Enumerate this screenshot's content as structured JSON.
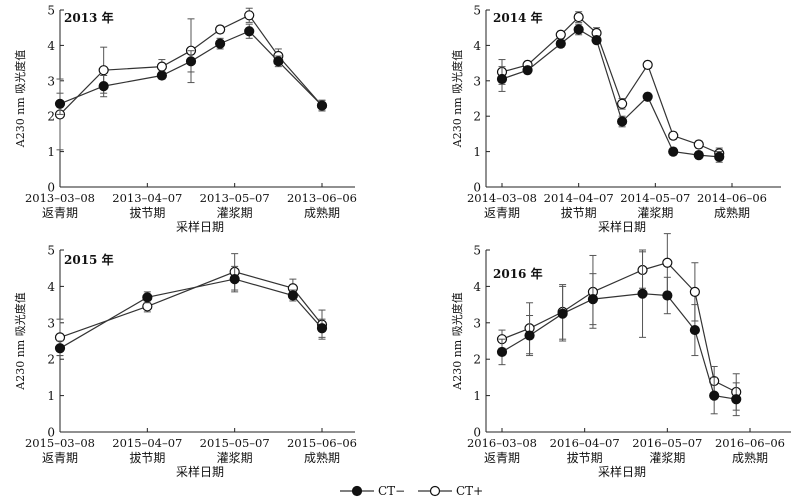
{
  "legend": {
    "items": [
      {
        "label": "CT−",
        "marker": "filled"
      },
      {
        "label": "CT+",
        "marker": "open"
      }
    ]
  },
  "colors": {
    "axis": "#222222",
    "line": "#333333",
    "fill": "#111111",
    "open_fill": "#ffffff"
  },
  "chart_data": [
    {
      "type": "line",
      "panel_label": "2013 年",
      "ylabel": "A230 nm 吸光度值",
      "xlabel": "采样日期",
      "ylim": [
        0,
        5
      ],
      "y_ticks": [
        0,
        1,
        2,
        3,
        4,
        5
      ],
      "x_ticks": [
        {
          "x": "2013-03-08",
          "date": "2013–03–08",
          "stage": "返青期"
        },
        {
          "x": "2013-04-07",
          "date": "2013–04–07",
          "stage": "拔节期"
        },
        {
          "x": "2013-05-07",
          "date": "2013–05–07",
          "stage": "灌浆期"
        },
        {
          "x": "2013-06-06",
          "date": "2013–06–06",
          "stage": "成熟期"
        }
      ],
      "series": [
        {
          "name": "CT−",
          "marker": "filled",
          "x": [
            "2013-03-08",
            "2013-03-23",
            "2013-04-12",
            "2013-04-22",
            "2013-05-02",
            "2013-05-12",
            "2013-05-22",
            "2013-06-06"
          ],
          "values": [
            2.35,
            2.85,
            3.15,
            3.55,
            4.05,
            4.4,
            3.55,
            2.3
          ],
          "errors": [
            0.3,
            0.3,
            0.1,
            0.3,
            0.15,
            0.2,
            0.15,
            0.15
          ]
        },
        {
          "name": "CT+",
          "marker": "open",
          "x": [
            "2013-03-08",
            "2013-03-23",
            "2013-04-12",
            "2013-04-22",
            "2013-05-02",
            "2013-05-12",
            "2013-05-22",
            "2013-06-06"
          ],
          "values": [
            2.05,
            3.3,
            3.4,
            3.85,
            4.45,
            4.85,
            3.7,
            2.3
          ],
          "errors": [
            1.0,
            0.65,
            0.2,
            0.9,
            0.1,
            0.2,
            0.2,
            0.15
          ]
        }
      ]
    },
    {
      "type": "line",
      "panel_label": "2014 年",
      "ylabel": "A230 nm 吸光度值",
      "xlabel": "采样日期",
      "ylim": [
        0,
        5
      ],
      "y_ticks": [
        0,
        1,
        2,
        3,
        4,
        5
      ],
      "x_ticks": [
        {
          "x": "2014-03-08",
          "date": "2014–03–08",
          "stage": "返青期"
        },
        {
          "x": "2014-04-07",
          "date": "2014–04–07",
          "stage": "拔节期"
        },
        {
          "x": "2014-05-07",
          "date": "2014–05–07",
          "stage": "灌浆期"
        },
        {
          "x": "2014-06-06",
          "date": "2014–06–06",
          "stage": "成熟期"
        }
      ],
      "series": [
        {
          "name": "CT−",
          "marker": "filled",
          "x": [
            "2014-03-08",
            "2014-03-18",
            "2014-03-31",
            "2014-04-07",
            "2014-04-14",
            "2014-04-24",
            "2014-05-04",
            "2014-05-14",
            "2014-05-24",
            "2014-06-01"
          ],
          "values": [
            3.05,
            3.3,
            4.05,
            4.45,
            4.15,
            1.85,
            2.55,
            1.0,
            0.9,
            0.85
          ],
          "errors": [
            0.35,
            0.1,
            0.1,
            0.15,
            0.1,
            0.15,
            0.1,
            0.1,
            0.1,
            0.15
          ]
        },
        {
          "name": "CT+",
          "marker": "open",
          "x": [
            "2014-03-08",
            "2014-03-18",
            "2014-03-31",
            "2014-04-07",
            "2014-04-14",
            "2014-04-24",
            "2014-05-04",
            "2014-05-14",
            "2014-05-24",
            "2014-06-01"
          ],
          "values": [
            3.25,
            3.45,
            4.3,
            4.8,
            4.35,
            2.35,
            3.45,
            1.45,
            1.2,
            0.95
          ],
          "errors": [
            0.35,
            0.1,
            0.1,
            0.15,
            0.15,
            0.15,
            0.1,
            0.1,
            0.1,
            0.15
          ]
        }
      ]
    },
    {
      "type": "line",
      "panel_label": "2015 年",
      "ylabel": "A230 nm 吸光度值",
      "xlabel": "采样日期",
      "ylim": [
        0,
        5
      ],
      "y_ticks": [
        0,
        1,
        2,
        3,
        4,
        5
      ],
      "x_ticks": [
        {
          "x": "2015-03-08",
          "date": "2015–03–08",
          "stage": "返青期"
        },
        {
          "x": "2015-04-07",
          "date": "2015–04–07",
          "stage": "拔节期"
        },
        {
          "x": "2015-05-07",
          "date": "2015–05–07",
          "stage": "灌浆期"
        },
        {
          "x": "2015-06-06",
          "date": "2015–06–06",
          "stage": "成熟期"
        }
      ],
      "series": [
        {
          "name": "CT−",
          "marker": "filled",
          "x": [
            "2015-03-08",
            "2015-04-07",
            "2015-05-07",
            "2015-05-27",
            "2015-06-06"
          ],
          "values": [
            2.3,
            3.7,
            4.2,
            3.75,
            2.85
          ],
          "errors": [
            0.2,
            0.15,
            0.35,
            0.15,
            0.25
          ]
        },
        {
          "name": "CT+",
          "marker": "open",
          "x": [
            "2015-03-08",
            "2015-04-07",
            "2015-05-07",
            "2015-05-27",
            "2015-06-06"
          ],
          "values": [
            2.6,
            3.45,
            4.4,
            3.95,
            2.95
          ],
          "errors": [
            0.5,
            0.15,
            0.5,
            0.25,
            0.4
          ]
        }
      ]
    },
    {
      "type": "line",
      "panel_label": "2016 年",
      "ylabel": "A230 nm 吸光度值",
      "xlabel": "采样日期",
      "ylim": [
        0,
        5
      ],
      "y_ticks": [
        0,
        1,
        2,
        3,
        4,
        5
      ],
      "x_ticks": [
        {
          "x": "2016-03-08",
          "date": "2016–03–08",
          "stage": "返青期"
        },
        {
          "x": "2016-04-07",
          "date": "2016–04–07",
          "stage": "拔节期"
        },
        {
          "x": "2016-05-07",
          "date": "2016–05–07",
          "stage": "灌浆期"
        },
        {
          "x": "2016-06-06",
          "date": "2016–06–06",
          "stage": "成熟期"
        }
      ],
      "series": [
        {
          "name": "CT−",
          "marker": "filled",
          "x": [
            "2016-03-08",
            "2016-03-18",
            "2016-03-30",
            "2016-04-10",
            "2016-04-28",
            "2016-05-07",
            "2016-05-17",
            "2016-05-24",
            "2016-06-01"
          ],
          "values": [
            2.2,
            2.65,
            3.25,
            3.65,
            3.8,
            3.75,
            2.8,
            1.0,
            0.9
          ],
          "errors": [
            0.35,
            0.55,
            0.75,
            0.7,
            1.2,
            0.5,
            0.7,
            0.5,
            0.45
          ]
        },
        {
          "name": "CT+",
          "marker": "open",
          "x": [
            "2016-03-08",
            "2016-03-18",
            "2016-03-30",
            "2016-04-10",
            "2016-04-28",
            "2016-05-07",
            "2016-05-17",
            "2016-05-24",
            "2016-06-01"
          ],
          "values": [
            2.55,
            2.85,
            3.3,
            3.85,
            4.45,
            4.65,
            3.85,
            1.4,
            1.1
          ],
          "errors": [
            0.25,
            0.7,
            0.75,
            1.0,
            0.5,
            0.8,
            0.8,
            0.4,
            0.5
          ]
        }
      ]
    }
  ]
}
